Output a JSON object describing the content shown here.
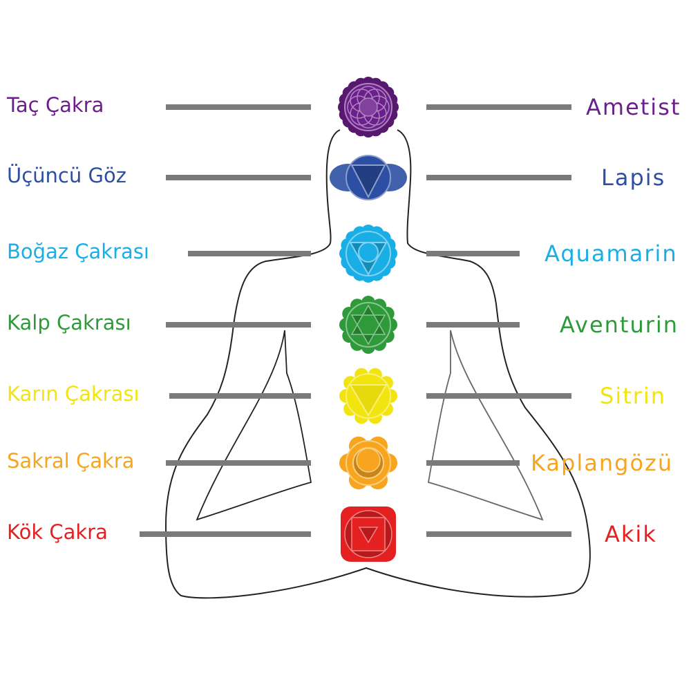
{
  "chakras": [
    {
      "name": "Taç Çakra",
      "stone": "Ametist",
      "color": "#6b1f8a",
      "icon": "crown-chakra-lotus-icon"
    },
    {
      "name": "Üçüncü Göz",
      "stone": "Lapis",
      "color": "#2c4fa3",
      "icon": "third-eye-chakra-icon"
    },
    {
      "name": "Boğaz Çakrası",
      "stone": "Aquamarin",
      "color": "#1aaee6",
      "icon": "throat-chakra-icon"
    },
    {
      "name": "Kalp Çakrası",
      "stone": "Aventurin",
      "color": "#2e9a3a",
      "icon": "heart-chakra-icon"
    },
    {
      "name": "Karın Çakrası",
      "stone": "Sitrin",
      "color": "#f2e40f",
      "icon": "solar-plexus-chakra-icon"
    },
    {
      "name": "Sakral Çakra",
      "stone": "Kaplangözü",
      "color": "#f7a51f",
      "icon": "sacral-chakra-icon"
    },
    {
      "name": "Kök Çakra",
      "stone": "Akik",
      "color": "#e52020",
      "icon": "root-chakra-icon"
    }
  ]
}
